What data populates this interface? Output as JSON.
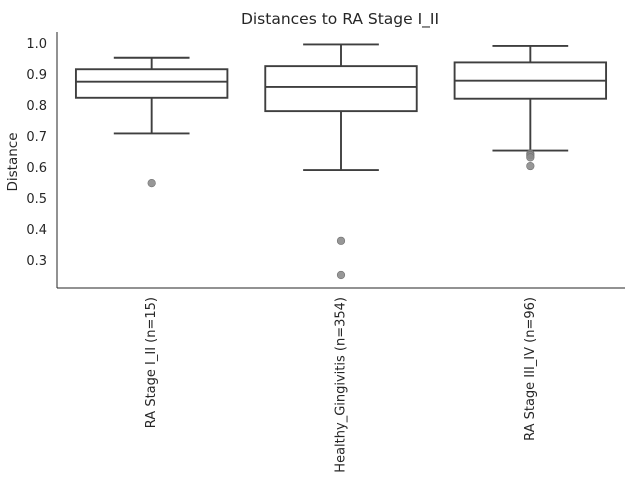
{
  "chart_data": {
    "type": "box",
    "title": "Distances to RA Stage I_II",
    "xlabel": "",
    "ylabel": "Distance",
    "ylim": [
      0.215,
      1.04
    ],
    "yticks": [
      0.3,
      0.4,
      0.5,
      0.6,
      0.7,
      0.8,
      0.9,
      1.0
    ],
    "ytick_labels": [
      "0.3",
      "0.4",
      "0.5",
      "0.6",
      "0.7",
      "0.8",
      "0.9",
      "1.0"
    ],
    "grid": false,
    "colors": {
      "box_edge": "#3f3f3f",
      "box_fill": "#ffffff",
      "outlier": "#8c8c8c",
      "axis": "#262626"
    },
    "categories": [
      "RA Stage I_II (n=15)",
      "Healthy_Gingivitis (n=354)",
      "RA Stage III_IV (n=96)"
    ],
    "boxes": [
      {
        "category": "RA Stage I_II (n=15)",
        "whisker_low": 0.713,
        "q1": 0.828,
        "median": 0.88,
        "q3": 0.92,
        "whisker_high": 0.957,
        "outliers": [
          0.553
        ]
      },
      {
        "category": "Healthy_Gingivitis (n=354)",
        "whisker_low": 0.595,
        "q1": 0.785,
        "median": 0.863,
        "q3": 0.93,
        "whisker_high": 1.0,
        "outliers": [
          0.367,
          0.257
        ]
      },
      {
        "category": "RA Stage III_IV (n=96)",
        "whisker_low": 0.658,
        "q1": 0.825,
        "median": 0.883,
        "q3": 0.942,
        "whisker_high": 0.995,
        "outliers": [
          0.648,
          0.643,
          0.636,
          0.608
        ]
      }
    ]
  }
}
